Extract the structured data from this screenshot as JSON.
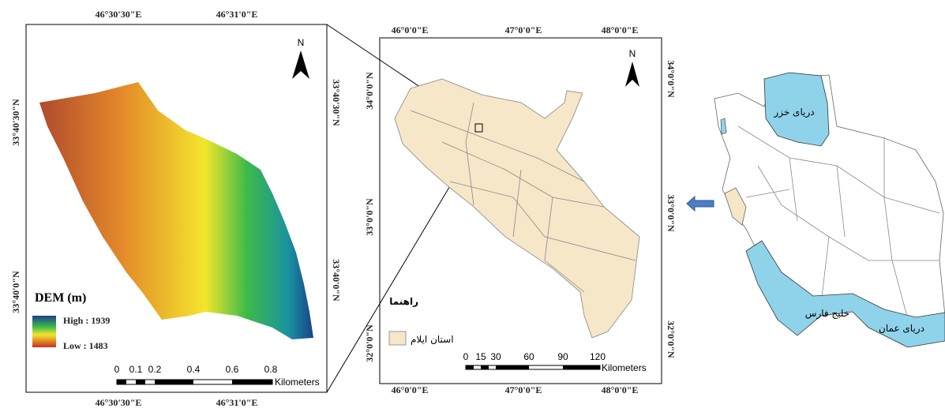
{
  "dem_map": {
    "lon_labels": [
      "46°30'30\"E",
      "46°31'0\"E"
    ],
    "lat_labels": [
      "33°40'30\"N",
      "33°40'0\"N"
    ],
    "north": "N",
    "legend": {
      "title": "DEM (m)",
      "high": "High : 1939",
      "low": "Low : 1483"
    },
    "scale": {
      "ticks": [
        0,
        0.1,
        0.2,
        0.4,
        0.6,
        0.8
      ],
      "unit": "Kilometers"
    }
  },
  "province_map": {
    "lon_labels": [
      "46°0'0\"E",
      "47°0'0\"E",
      "48°0'0\"E"
    ],
    "lat_labels": [
      "34°0'0\"N",
      "33°0'0\"N",
      "32°0'0\"N"
    ],
    "north": "N",
    "legend": {
      "title": "راهنما",
      "item": "استان ایلام"
    },
    "scale": {
      "ticks": [
        0,
        15,
        30,
        60,
        90,
        120
      ],
      "unit": "Kilometers"
    }
  },
  "iran_map": {
    "labels": [
      "دریای خزر",
      "خلیج فارس",
      "دریای عمان"
    ]
  }
}
